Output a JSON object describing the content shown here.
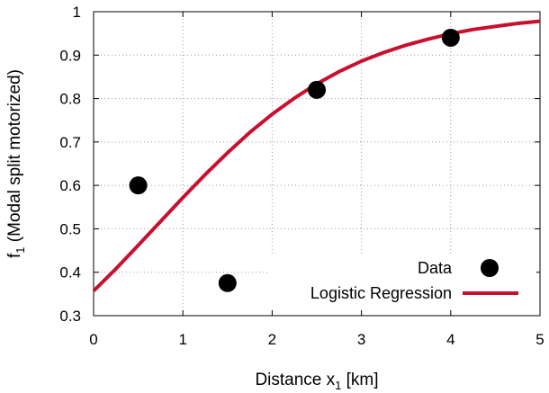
{
  "chart_data": {
    "type": "scatter",
    "xlabel": {
      "main": "Distance x",
      "sub": "1",
      "suffix": " [km]"
    },
    "ylabel": {
      "main": "f",
      "sub": "1",
      "suffix": " (Modal split motorized)"
    },
    "xlim": [
      0,
      5
    ],
    "ylim": [
      0.3,
      1
    ],
    "xticks": [
      0,
      1,
      2,
      3,
      4,
      5
    ],
    "yticks": [
      0.3,
      0.4,
      0.5,
      0.6,
      0.7,
      0.8,
      0.9,
      1
    ],
    "xtick_labels": [
      "0",
      "1",
      "2",
      "3",
      "4",
      "5"
    ],
    "ytick_labels": [
      "0.3",
      "0.4",
      "0.5",
      "0.6",
      "0.7",
      "0.8",
      "0.9",
      "1"
    ],
    "grid": true,
    "legend_position": "bottom-right",
    "series": [
      {
        "name": "Data",
        "kind": "points",
        "color": "#000000",
        "x": [
          0.5,
          1.5,
          2.5,
          4.0
        ],
        "y": [
          0.6,
          0.375,
          0.82,
          0.94
        ]
      },
      {
        "name": "Logistic Regression",
        "kind": "line",
        "color": "#c8102e",
        "x": [
          0,
          0.25,
          0.5,
          0.75,
          1,
          1.25,
          1.5,
          1.75,
          2,
          2.25,
          2.5,
          2.75,
          3,
          3.25,
          3.5,
          3.75,
          4,
          4.25,
          4.5,
          4.75,
          5
        ],
        "y": [
          0.357,
          0.408,
          0.462,
          0.517,
          0.572,
          0.625,
          0.675,
          0.722,
          0.764,
          0.801,
          0.834,
          0.862,
          0.886,
          0.906,
          0.923,
          0.937,
          0.949,
          0.959,
          0.966,
          0.973,
          0.978
        ]
      }
    ]
  }
}
